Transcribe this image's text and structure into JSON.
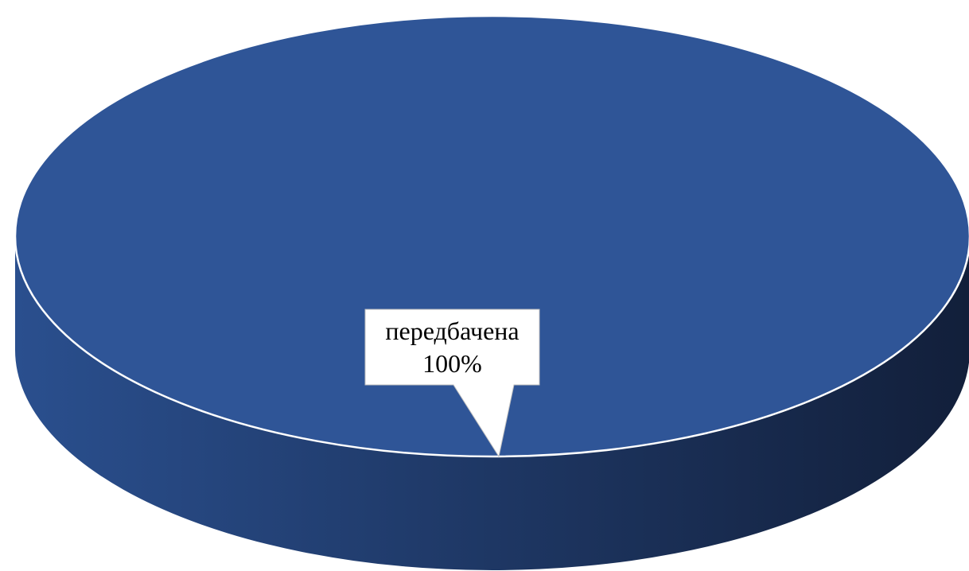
{
  "chart_data": {
    "type": "pie",
    "style": "3d",
    "slices": [
      {
        "label": "передбачена",
        "value": 100,
        "value_label": "100%",
        "color": "#2F5597"
      }
    ],
    "title": "",
    "legend": "none",
    "data_labels": "callout"
  }
}
